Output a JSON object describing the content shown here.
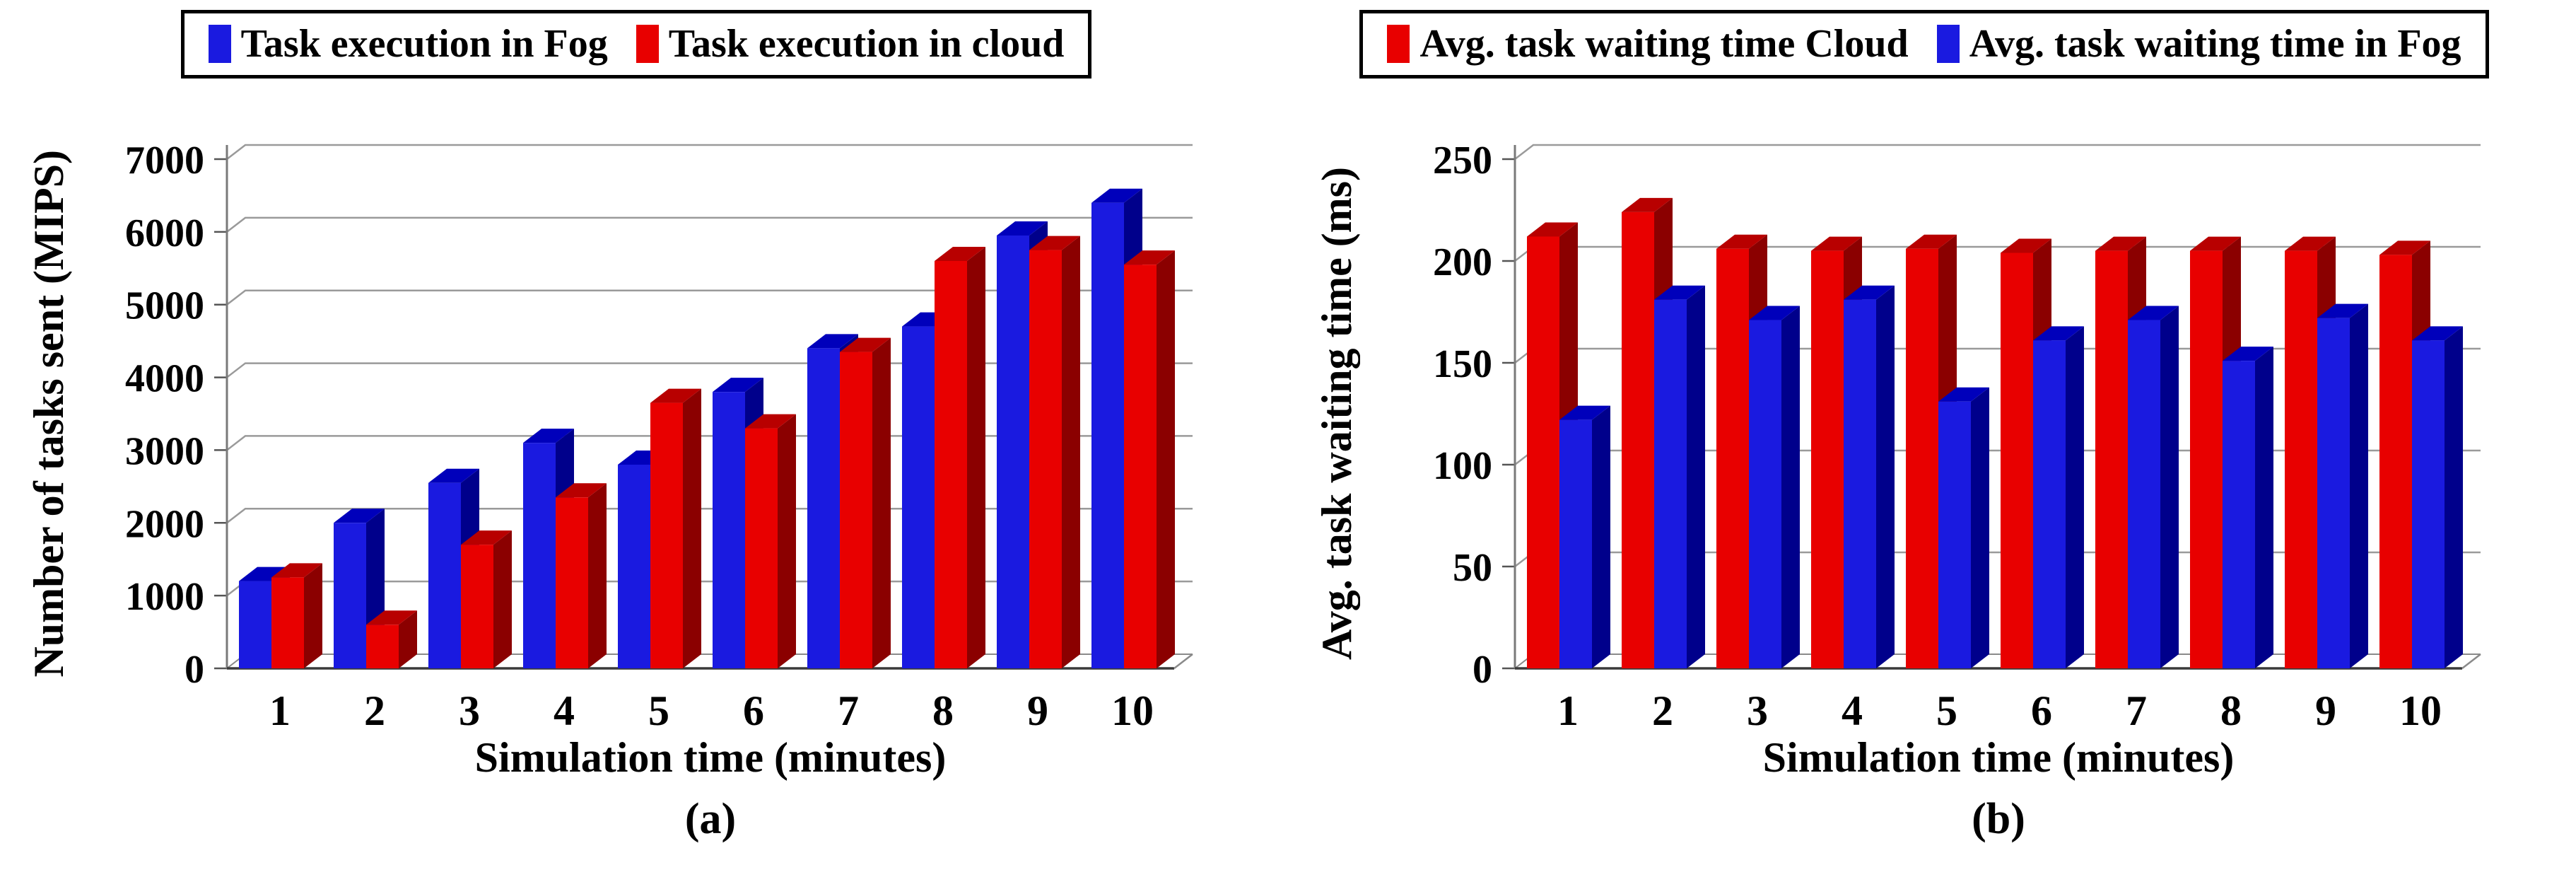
{
  "colors": {
    "background": "#ffffff",
    "text": "#000000",
    "legend_border": "#000000",
    "grid": "#9a9a9a",
    "axis": "#7a7a7a",
    "tick": "#555555",
    "baseline": "#3a3a3a",
    "floor_edge": "#8a8a8a",
    "fog_front": "#1a1ae0",
    "fog_side": "#00008b",
    "fog_top": "#0000bb",
    "cloud_front": "#e80000",
    "cloud_side": "#8b0000",
    "cloud_top": "#b80000"
  },
  "chart_data": [
    {
      "type": "bar",
      "caption": "(a)",
      "xlabel": "Simulation time (minutes)",
      "ylabel": "Number of tasks sent (MIPS)",
      "categories": [
        "1",
        "2",
        "3",
        "4",
        "5",
        "6",
        "7",
        "8",
        "9",
        "10"
      ],
      "ylim": [
        0,
        7000
      ],
      "ytick_step": 1000,
      "yticks": [
        0,
        1000,
        2000,
        3000,
        4000,
        5000,
        6000,
        7000
      ],
      "grid": true,
      "legend_position": "top",
      "series": [
        {
          "name": "Task execution in Fog",
          "color_key": "fog",
          "values": [
            1200,
            2000,
            2550,
            3100,
            2800,
            3800,
            4400,
            4700,
            5950,
            6400
          ]
        },
        {
          "name": "Task execution in cloud",
          "color_key": "cloud",
          "values": [
            1250,
            600,
            1700,
            2350,
            3650,
            3300,
            4350,
            5600,
            5750,
            5550
          ]
        }
      ]
    },
    {
      "type": "bar",
      "caption": "(b)",
      "xlabel": "Simulation time (minutes)",
      "ylabel": "Avg. task waiting time (ms)",
      "categories": [
        "1",
        "2",
        "3",
        "4",
        "5",
        "6",
        "7",
        "8",
        "9",
        "10"
      ],
      "ylim": [
        0,
        250
      ],
      "ytick_step": 50,
      "yticks": [
        0,
        50,
        100,
        150,
        200,
        250
      ],
      "grid": true,
      "legend_position": "top",
      "series": [
        {
          "name": "Avg. task waiting time Cloud",
          "color_key": "cloud",
          "values": [
            212,
            224,
            206,
            205,
            206,
            204,
            205,
            205,
            205,
            203
          ]
        },
        {
          "name": "Avg. task waiting time in Fog",
          "color_key": "fog",
          "values": [
            122,
            181,
            171,
            181,
            131,
            161,
            171,
            151,
            172,
            161
          ]
        }
      ]
    }
  ]
}
